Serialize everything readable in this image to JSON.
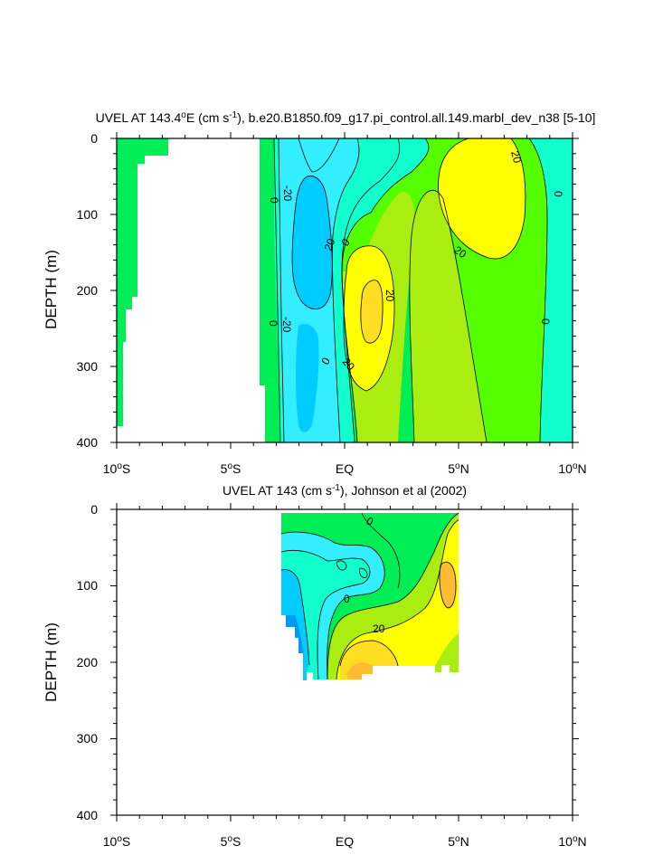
{
  "chart_data": [
    {
      "type": "contour",
      "title": "UVEL AT 143.4°E (cm s-1), b.e20.B1850.f09_g17.pi_control.all.149.marbl_dev_n38 [5-10]",
      "title_parts": {
        "pre": "UVEL AT 143.4",
        "deg": "o",
        "mid": "E (cm s",
        "sup": "-1",
        "post": "), b.e20.B1850.f09_g17.pi_control.all.149.marbl_dev_n38 [5-10]"
      },
      "ylabel": "DEPTH (m)",
      "xlim": [
        -10,
        10
      ],
      "ylim": [
        400,
        0
      ],
      "y_ticks": [
        "0",
        "100",
        "200",
        "300",
        "400"
      ],
      "x_ticks": [
        {
          "num": "10",
          "deg": "o",
          "hemi": "S"
        },
        {
          "num": "5",
          "deg": "o",
          "hemi": "S"
        },
        {
          "num": "EQ",
          "deg": "",
          "hemi": ""
        },
        {
          "num": "5",
          "deg": "o",
          "hemi": "N"
        },
        {
          "num": "10",
          "deg": "o",
          "hemi": "N"
        }
      ],
      "contour_labels": [
        "0",
        "-20",
        "20",
        "0",
        "20",
        "20",
        "20",
        "0",
        "-20",
        "0",
        "20",
        "0",
        "0"
      ]
    },
    {
      "type": "contour",
      "title": "UVEL AT 143 (cm s-1), Johnson et al (2002)",
      "title_parts": {
        "pre": "UVEL AT 143 (cm s",
        "sup": "-1",
        "post": "), Johnson et al (2002)"
      },
      "ylabel": "DEPTH (m)",
      "xlim": [
        -10,
        10
      ],
      "ylim": [
        400,
        0
      ],
      "y_ticks": [
        "0",
        "100",
        "200",
        "300",
        "400"
      ],
      "x_ticks": [
        {
          "num": "10",
          "deg": "o",
          "hemi": "S"
        },
        {
          "num": "5",
          "deg": "o",
          "hemi": "S"
        },
        {
          "num": "EQ",
          "deg": "",
          "hemi": ""
        },
        {
          "num": "5",
          "deg": "o",
          "hemi": "N"
        },
        {
          "num": "10",
          "deg": "o",
          "hemi": "N"
        }
      ],
      "contour_labels": [
        "0",
        "0",
        "20"
      ]
    }
  ],
  "colors": {
    "lightblue": "#00ccff",
    "cyan": "#33eeff",
    "aqua": "#11ffcc",
    "green": "#00ee55",
    "lime": "#55ff00",
    "yellowgreen": "#aaee11",
    "yellow": "#ffff00",
    "gold": "#ffdd22",
    "orange": "#ffbb33",
    "blue": "#0099ee"
  }
}
